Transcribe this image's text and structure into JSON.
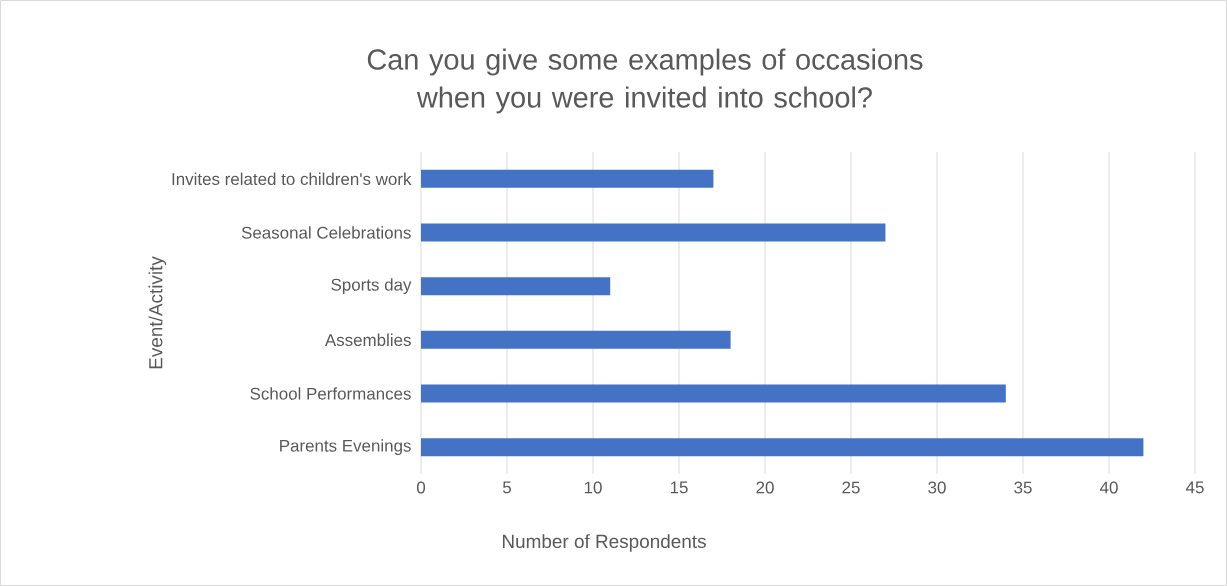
{
  "chart_data": {
    "type": "bar",
    "orientation": "horizontal",
    "title": "Can you give some examples of occasions when you were invited into school?",
    "xlabel": "Number of Respondents",
    "ylabel": "Event/Activity",
    "categories": [
      "Invites related to children's work",
      "Seasonal Celebrations",
      "Sports day",
      "Assemblies",
      "School Performances",
      "Parents Evenings"
    ],
    "values": [
      17,
      27,
      11,
      18,
      34,
      42
    ],
    "color": "#4472c4",
    "xlim": [
      0,
      45
    ],
    "xticks": [
      0,
      5,
      10,
      15,
      20,
      25,
      30,
      35,
      40,
      45
    ],
    "grid": "x"
  }
}
